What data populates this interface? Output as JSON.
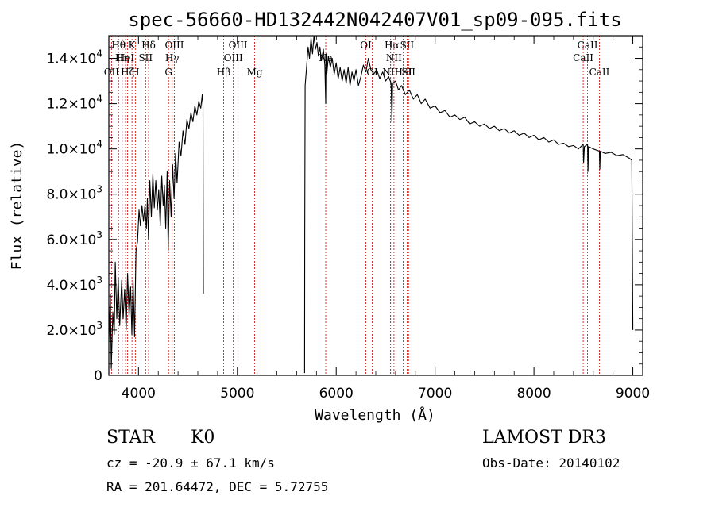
{
  "chart_data": {
    "type": "line",
    "title": "spec-56660-HD132442N042407V01_sp09-095.fits",
    "xlabel": "Wavelength (Å)",
    "ylabel": "Flux (relative)",
    "xlim": [
      3700,
      9100
    ],
    "ylim": [
      0,
      15000
    ],
    "x_ticks": [
      4000,
      5000,
      6000,
      7000,
      8000,
      9000
    ],
    "x_tick_labels": [
      "4000",
      "5000",
      "6000",
      "7000",
      "8000",
      "9000"
    ],
    "y_ticks": [
      0,
      2000,
      4000,
      6000,
      8000,
      10000,
      12000,
      14000
    ],
    "y_tick_labels": [
      {
        "mant": "0",
        "exp": ""
      },
      {
        "mant": "2.0×10",
        "exp": "3"
      },
      {
        "mant": "4.0×10",
        "exp": "3"
      },
      {
        "mant": "6.0×10",
        "exp": "3"
      },
      {
        "mant": "8.0×10",
        "exp": "3"
      },
      {
        "mant": "1.0×10",
        "exp": "4"
      },
      {
        "mant": "1.2×10",
        "exp": "4"
      },
      {
        "mant": "1.4×10",
        "exp": "4"
      }
    ],
    "series": [
      {
        "name": "spectrum",
        "segments": [
          [
            [
              3700,
              1500
            ],
            [
              3715,
              3600
            ],
            [
              3725,
              300
            ],
            [
              3740,
              2800
            ],
            [
              3755,
              1800
            ],
            [
              3765,
              5000
            ],
            [
              3780,
              2500
            ],
            [
              3795,
              4300
            ],
            [
              3810,
              2200
            ],
            [
              3830,
              4200
            ],
            [
              3845,
              2500
            ],
            [
              3860,
              3800
            ],
            [
              3875,
              2000
            ],
            [
              3890,
              4500
            ],
            [
              3905,
              2600
            ],
            [
              3920,
              3900
            ],
            [
              3933,
              1800
            ],
            [
              3945,
              4200
            ],
            [
              3960,
              1700
            ],
            [
              3975,
              5500
            ],
            [
              3990,
              5900
            ],
            [
              4005,
              7300
            ],
            [
              4020,
              6600
            ],
            [
              4035,
              7500
            ],
            [
              4050,
              6800
            ],
            [
              4065,
              7500
            ],
            [
              4080,
              6500
            ],
            [
              4090,
              7800
            ],
            [
              4101,
              6000
            ],
            [
              4115,
              8600
            ],
            [
              4130,
              7000
            ],
            [
              4145,
              8900
            ],
            [
              4160,
              7400
            ],
            [
              4175,
              8600
            ],
            [
              4190,
              7300
            ],
            [
              4205,
              8200
            ],
            [
              4220,
              6600
            ],
            [
              4235,
              8800
            ],
            [
              4250,
              7500
            ],
            [
              4262,
              8400
            ],
            [
              4275,
              6500
            ],
            [
              4290,
              9000
            ],
            [
              4300,
              5500
            ],
            [
              4315,
              8600
            ],
            [
              4330,
              7000
            ],
            [
              4345,
              9300
            ],
            [
              4360,
              7800
            ],
            [
              4375,
              9800
            ],
            [
              4390,
              8500
            ],
            [
              4410,
              10300
            ],
            [
              4430,
              9700
            ],
            [
              4450,
              10800
            ],
            [
              4470,
              10200
            ],
            [
              4490,
              11300
            ],
            [
              4510,
              10900
            ],
            [
              4530,
              11600
            ],
            [
              4550,
              11200
            ],
            [
              4570,
              11900
            ],
            [
              4590,
              11500
            ],
            [
              4610,
              12100
            ],
            [
              4630,
              11800
            ],
            [
              4645,
              12400
            ],
            [
              4652,
              11900
            ],
            [
              4656,
              3600
            ]
          ],
          [
            [
              5680,
              100
            ],
            [
              5682,
              6200
            ],
            [
              5686,
              12800
            ],
            [
              5700,
              13600
            ],
            [
              5715,
              14500
            ],
            [
              5730,
              14000
            ],
            [
              5745,
              14900
            ],
            [
              5760,
              14200
            ],
            [
              5775,
              15000
            ],
            [
              5790,
              14400
            ],
            [
              5805,
              14700
            ],
            [
              5820,
              14100
            ],
            [
              5835,
              14500
            ],
            [
              5850,
              13900
            ],
            [
              5870,
              14400
            ],
            [
              5885,
              13700
            ],
            [
              5894,
              12000
            ],
            [
              5897,
              14200
            ],
            [
              5905,
              13300
            ],
            [
              5920,
              14100
            ],
            [
              5940,
              13600
            ],
            [
              5960,
              14000
            ],
            [
              5980,
              13300
            ],
            [
              6000,
              13800
            ],
            [
              6020,
              13100
            ],
            [
              6040,
              13600
            ],
            [
              6060,
              13000
            ],
            [
              6080,
              13500
            ],
            [
              6100,
              12900
            ],
            [
              6120,
              13600
            ],
            [
              6140,
              12800
            ],
            [
              6160,
              13400
            ],
            [
              6180,
              13000
            ],
            [
              6200,
              13500
            ],
            [
              6225,
              12800
            ],
            [
              6250,
              13200
            ],
            [
              6275,
              13700
            ],
            [
              6300,
              13400
            ],
            [
              6325,
              14000
            ],
            [
              6350,
              13500
            ],
            [
              6380,
              13300
            ],
            [
              6410,
              13500
            ],
            [
              6440,
              13100
            ],
            [
              6470,
              13400
            ],
            [
              6500,
              13000
            ],
            [
              6530,
              13200
            ],
            [
              6555,
              12900
            ],
            [
              6563,
              11200
            ],
            [
              6570,
              12900
            ],
            [
              6600,
              13000
            ],
            [
              6630,
              12600
            ],
            [
              6660,
              12800
            ],
            [
              6700,
              12400
            ],
            [
              6740,
              12600
            ],
            [
              6780,
              12200
            ],
            [
              6820,
              12400
            ],
            [
              6860,
              12000
            ],
            [
              6900,
              12200
            ],
            [
              6950,
              11800
            ],
            [
              7000,
              11900
            ],
            [
              7050,
              11600
            ],
            [
              7100,
              11700
            ],
            [
              7150,
              11400
            ],
            [
              7200,
              11500
            ],
            [
              7250,
              11300
            ],
            [
              7300,
              11400
            ],
            [
              7350,
              11100
            ],
            [
              7400,
              11200
            ],
            [
              7450,
              11000
            ],
            [
              7500,
              11100
            ],
            [
              7550,
              10900
            ],
            [
              7600,
              11000
            ],
            [
              7650,
              10800
            ],
            [
              7700,
              10900
            ],
            [
              7750,
              10700
            ],
            [
              7800,
              10800
            ],
            [
              7850,
              10600
            ],
            [
              7900,
              10700
            ],
            [
              7950,
              10500
            ],
            [
              8000,
              10600
            ],
            [
              8050,
              10400
            ],
            [
              8100,
              10500
            ],
            [
              8150,
              10300
            ],
            [
              8200,
              10400
            ],
            [
              8250,
              10200
            ],
            [
              8300,
              10250
            ],
            [
              8350,
              10100
            ],
            [
              8400,
              10150
            ],
            [
              8450,
              10000
            ],
            [
              8498,
              10200
            ],
            [
              8502,
              9400
            ],
            [
              8510,
              10100
            ],
            [
              8542,
              10200
            ],
            [
              8546,
              9000
            ],
            [
              8552,
              10100
            ],
            [
              8600,
              10000
            ],
            [
              8662,
              9900
            ],
            [
              8666,
              9100
            ],
            [
              8672,
              9900
            ],
            [
              8720,
              9800
            ],
            [
              8780,
              9850
            ],
            [
              8840,
              9700
            ],
            [
              8900,
              9750
            ],
            [
              8960,
              9600
            ],
            [
              8990,
              9500
            ],
            [
              9000,
              2000
            ]
          ]
        ]
      }
    ],
    "spectral_lines": [
      {
        "wave": 3727,
        "label": "OII",
        "row": 3
      },
      {
        "wave": 3798,
        "label": "Hθ",
        "row": 1
      },
      {
        "wave": 3835,
        "label": "Hη",
        "row": 2
      },
      {
        "wave": 3869,
        "label": "HeI",
        "row": 2
      },
      {
        "wave": 3890,
        "label": "Hζ",
        "row": 3
      },
      {
        "wave": 3934,
        "label": "K",
        "row": 1
      },
      {
        "wave": 3968,
        "label": "H",
        "row": 3
      },
      {
        "wave": 4072,
        "label": "SII",
        "row": 2
      },
      {
        "wave": 4102,
        "label": "Hδ",
        "row": 1
      },
      {
        "wave": 4304,
        "label": "G",
        "row": 3
      },
      {
        "wave": 4340,
        "label": "Hγ",
        "row": 2
      },
      {
        "wave": 4363,
        "label": "OIII",
        "row": 1
      },
      {
        "wave": 4861,
        "label": "Hβ",
        "row": 3
      },
      {
        "wave": 4959,
        "label": "OIII",
        "row": 2
      },
      {
        "wave": 5007,
        "label": "OIII",
        "row": 1
      },
      {
        "wave": 5175,
        "label": "Mg",
        "row": 3
      },
      {
        "wave": 5894,
        "label": "Na",
        "row": 2
      },
      {
        "wave": 6300,
        "label": "OI",
        "row": 1
      },
      {
        "wave": 6364,
        "label": "OI",
        "row": 3
      },
      {
        "wave": 6548,
        "label": "NII",
        "row": 3
      },
      {
        "wave": 6563,
        "label": "Hα",
        "row": 1
      },
      {
        "wave": 6584,
        "label": "NII",
        "row": 2
      },
      {
        "wave": 6678,
        "label": "HeI",
        "row": 3
      },
      {
        "wave": 6717,
        "label": "SII",
        "row": 1
      },
      {
        "wave": 6731,
        "label": "SII",
        "row": 3
      },
      {
        "wave": 8498,
        "label": "CaII",
        "row": 2
      },
      {
        "wave": 8542,
        "label": "CaII",
        "row": 1
      },
      {
        "wave": 8662,
        "label": "CaII",
        "row": 3
      }
    ]
  },
  "info": {
    "class": "STAR",
    "subclass": "K0",
    "survey": "LAMOST DR3",
    "cz": "cz = -20.9 ± 67.1 km/s",
    "obs_date": "Obs-Date: 20140102",
    "coords": "RA = 201.64472, DEC =   5.72755"
  }
}
